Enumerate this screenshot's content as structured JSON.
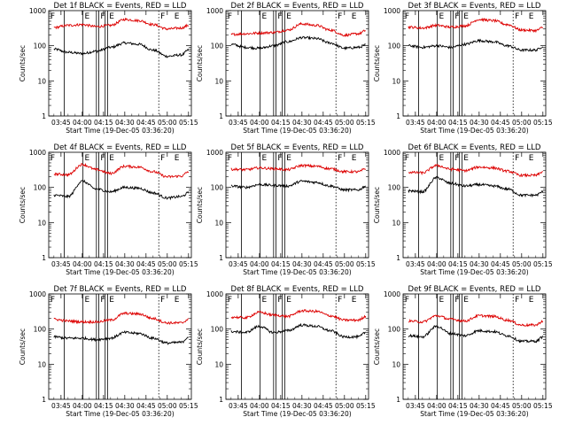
{
  "figure": {
    "background": "#ffffff",
    "event_color": "#000000",
    "lld_color": "#dd0000"
  },
  "chart_data": [
    {
      "type": "line",
      "title": "Det 1f BLACK = Events, RED = LLD",
      "xlabel": "Start Time (19-Dec-05 03:36:20)",
      "ylabel": "Counts/sec",
      "yscale": "log",
      "ylim": [
        1,
        1000
      ],
      "yticks": [
        "1",
        "10",
        "100",
        "1000"
      ],
      "xlim": [
        "03:36:20",
        "05:17:00"
      ],
      "xticks": [
        "03:45",
        "04:00",
        "04:15",
        "04:30",
        "04:45",
        "05:00",
        "05:15"
      ],
      "region_labels": [
        "F",
        "E",
        "F",
        "E",
        "F",
        "E"
      ],
      "series": [
        {
          "name": "Events",
          "x": [
            "03:40",
            "03:50",
            "04:00",
            "04:10",
            "04:20",
            "04:30",
            "04:40",
            "04:50",
            "05:00",
            "05:10",
            "05:15"
          ],
          "values": [
            80,
            65,
            60,
            70,
            90,
            120,
            110,
            75,
            50,
            55,
            75
          ]
        },
        {
          "name": "LLD",
          "x": [
            "03:40",
            "03:50",
            "04:00",
            "04:10",
            "04:20",
            "04:30",
            "04:40",
            "04:50",
            "05:00",
            "05:10",
            "05:15"
          ],
          "values": [
            330,
            380,
            400,
            350,
            380,
            560,
            520,
            400,
            300,
            320,
            380
          ]
        }
      ]
    },
    {
      "type": "line",
      "title": "Det 2f BLACK = Events, RED = LLD",
      "xlabel": "Start Time (19-Dec-05 03:36:20)",
      "ylabel": "Counts/sec",
      "yscale": "log",
      "ylim": [
        1,
        1000
      ],
      "yticks": [
        "1",
        "10",
        "100",
        "1000"
      ],
      "xlim": [
        "03:36:20",
        "05:17:00"
      ],
      "xticks": [
        "03:45",
        "04:00",
        "04:15",
        "04:30",
        "04:45",
        "05:00",
        "05:15"
      ],
      "region_labels": [
        "F",
        "E",
        "F",
        "E",
        "F",
        "E"
      ],
      "series": [
        {
          "name": "Events",
          "x": [
            "03:40",
            "03:50",
            "04:00",
            "04:10",
            "04:20",
            "04:30",
            "04:40",
            "04:50",
            "05:00",
            "05:10",
            "05:15"
          ],
          "values": [
            110,
            90,
            85,
            100,
            130,
            170,
            160,
            120,
            85,
            90,
            105
          ]
        },
        {
          "name": "LLD",
          "x": [
            "03:40",
            "03:50",
            "04:00",
            "04:10",
            "04:20",
            "04:30",
            "04:40",
            "04:50",
            "05:00",
            "05:10",
            "05:15"
          ],
          "values": [
            210,
            220,
            230,
            240,
            280,
            420,
            380,
            280,
            200,
            220,
            270
          ]
        }
      ]
    },
    {
      "type": "line",
      "title": "Det 3f BLACK = Events, RED = LLD",
      "xlabel": "Start Time (19-Dec-05 03:36:20)",
      "ylabel": "Counts/sec",
      "yscale": "log",
      "ylim": [
        1,
        1000
      ],
      "yticks": [
        "1",
        "10",
        "100",
        "1000"
      ],
      "xlim": [
        "03:36:20",
        "05:17:00"
      ],
      "xticks": [
        "03:45",
        "04:00",
        "04:15",
        "04:30",
        "04:45",
        "05:00",
        "05:15"
      ],
      "region_labels": [
        "F",
        "E",
        "F",
        "E",
        "F",
        "E"
      ],
      "series": [
        {
          "name": "Events",
          "x": [
            "03:40",
            "03:50",
            "04:00",
            "04:10",
            "04:20",
            "04:30",
            "04:40",
            "04:50",
            "05:00",
            "05:10",
            "05:15"
          ],
          "values": [
            100,
            90,
            100,
            90,
            110,
            140,
            130,
            100,
            75,
            75,
            95
          ]
        },
        {
          "name": "LLD",
          "x": [
            "03:40",
            "03:50",
            "04:00",
            "04:10",
            "04:20",
            "04:30",
            "04:40",
            "04:50",
            "05:00",
            "05:10",
            "05:15"
          ],
          "values": [
            340,
            320,
            380,
            340,
            370,
            560,
            520,
            400,
            280,
            270,
            330
          ]
        }
      ]
    },
    {
      "type": "line",
      "title": "Det 4f BLACK = Events, RED = LLD",
      "xlabel": "Start Time (19-Dec-05 03:36:20)",
      "ylabel": "Counts/sec",
      "yscale": "log",
      "ylim": [
        1,
        1000
      ],
      "yticks": [
        "1",
        "10",
        "100",
        "1000"
      ],
      "xlim": [
        "03:36:20",
        "05:17:00"
      ],
      "xticks": [
        "03:45",
        "04:00",
        "04:15",
        "04:30",
        "04:45",
        "05:00",
        "05:15"
      ],
      "region_labels": [
        "F",
        "E",
        "F",
        "E",
        "F",
        "E"
      ],
      "series": [
        {
          "name": "Events",
          "x": [
            "03:40",
            "03:50",
            "04:00",
            "04:10",
            "04:20",
            "04:30",
            "04:40",
            "04:50",
            "05:00",
            "05:10",
            "05:15"
          ],
          "values": [
            60,
            55,
            150,
            90,
            75,
            100,
            95,
            70,
            50,
            55,
            70
          ]
        },
        {
          "name": "LLD",
          "x": [
            "03:40",
            "03:50",
            "04:00",
            "04:10",
            "04:20",
            "04:30",
            "04:40",
            "04:50",
            "05:00",
            "05:10",
            "05:15"
          ],
          "values": [
            240,
            230,
            450,
            320,
            250,
            400,
            380,
            280,
            200,
            210,
            280
          ]
        }
      ]
    },
    {
      "type": "line",
      "title": "Det 5f BLACK = Events, RED = LLD",
      "xlabel": "Start Time (19-Dec-05 03:36:20)",
      "ylabel": "Counts/sec",
      "yscale": "log",
      "ylim": [
        1,
        1000
      ],
      "yticks": [
        "1",
        "10",
        "100",
        "1000"
      ],
      "xlim": [
        "03:36:20",
        "05:17:00"
      ],
      "xticks": [
        "03:45",
        "04:00",
        "04:15",
        "04:30",
        "04:45",
        "05:00",
        "05:15"
      ],
      "region_labels": [
        "F",
        "E",
        "F",
        "E",
        "F",
        "E"
      ],
      "series": [
        {
          "name": "Events",
          "x": [
            "03:40",
            "03:50",
            "04:00",
            "04:10",
            "04:20",
            "04:30",
            "04:40",
            "04:50",
            "05:00",
            "05:10",
            "05:15"
          ],
          "values": [
            110,
            100,
            120,
            115,
            110,
            150,
            140,
            110,
            85,
            85,
            110
          ]
        },
        {
          "name": "LLD",
          "x": [
            "03:40",
            "03:50",
            "04:00",
            "04:10",
            "04:20",
            "04:30",
            "04:40",
            "04:50",
            "05:00",
            "05:10",
            "05:15"
          ],
          "values": [
            330,
            320,
            360,
            340,
            320,
            420,
            400,
            340,
            280,
            280,
            340
          ]
        }
      ]
    },
    {
      "type": "line",
      "title": "Det 6f BLACK = Events, RED = LLD",
      "xlabel": "Start Time (19-Dec-05 03:36:20)",
      "ylabel": "Counts/sec",
      "yscale": "log",
      "ylim": [
        1,
        1000
      ],
      "yticks": [
        "1",
        "10",
        "100",
        "1000"
      ],
      "xlim": [
        "03:36:20",
        "05:17:00"
      ],
      "xticks": [
        "03:45",
        "04:00",
        "04:15",
        "04:30",
        "04:45",
        "05:00",
        "05:15"
      ],
      "region_labels": [
        "F",
        "E",
        "F",
        "E",
        "F",
        "E"
      ],
      "series": [
        {
          "name": "Events",
          "x": [
            "03:40",
            "03:50",
            "04:00",
            "04:10",
            "04:20",
            "04:30",
            "04:40",
            "04:50",
            "05:00",
            "05:10",
            "05:15"
          ],
          "values": [
            80,
            75,
            190,
            130,
            110,
            120,
            110,
            90,
            60,
            60,
            75
          ]
        },
        {
          "name": "LLD",
          "x": [
            "03:40",
            "03:50",
            "04:00",
            "04:10",
            "04:20",
            "04:30",
            "04:40",
            "04:50",
            "05:00",
            "05:10",
            "05:15"
          ],
          "values": [
            270,
            260,
            420,
            330,
            300,
            380,
            360,
            290,
            220,
            220,
            280
          ]
        }
      ]
    },
    {
      "type": "line",
      "title": "Det 7f BLACK = Events, RED = LLD",
      "xlabel": "Start Time (19-Dec-05 03:36:20)",
      "ylabel": "Counts/sec",
      "yscale": "log",
      "ylim": [
        1,
        1000
      ],
      "yticks": [
        "1",
        "10",
        "100",
        "1000"
      ],
      "xlim": [
        "03:36:20",
        "05:17:00"
      ],
      "xticks": [
        "03:45",
        "04:00",
        "04:15",
        "04:30",
        "04:45",
        "05:00",
        "05:15"
      ],
      "region_labels": [
        "F",
        "E",
        "F",
        "E",
        "F",
        "E"
      ],
      "series": [
        {
          "name": "Events",
          "x": [
            "03:40",
            "03:50",
            "04:00",
            "04:10",
            "04:20",
            "04:30",
            "04:40",
            "04:50",
            "05:00",
            "05:10",
            "05:15"
          ],
          "values": [
            60,
            55,
            55,
            50,
            55,
            80,
            75,
            55,
            40,
            42,
            60
          ]
        },
        {
          "name": "LLD",
          "x": [
            "03:40",
            "03:50",
            "04:00",
            "04:10",
            "04:20",
            "04:30",
            "04:40",
            "04:50",
            "05:00",
            "05:10",
            "05:15"
          ],
          "values": [
            190,
            170,
            160,
            160,
            180,
            280,
            270,
            200,
            150,
            150,
            190
          ]
        }
      ]
    },
    {
      "type": "line",
      "title": "Det 8f BLACK = Events, RED = LLD",
      "xlabel": "Start Time (19-Dec-05 03:36:20)",
      "ylabel": "Counts/sec",
      "yscale": "log",
      "ylim": [
        1,
        1000
      ],
      "yticks": [
        "1",
        "10",
        "100",
        "1000"
      ],
      "xlim": [
        "03:36:20",
        "05:17:00"
      ],
      "xticks": [
        "03:45",
        "04:00",
        "04:15",
        "04:30",
        "04:45",
        "05:00",
        "05:15"
      ],
      "region_labels": [
        "F",
        "E",
        "F",
        "E",
        "F",
        "E"
      ],
      "series": [
        {
          "name": "Events",
          "x": [
            "03:40",
            "03:50",
            "04:00",
            "04:10",
            "04:20",
            "04:30",
            "04:40",
            "04:50",
            "05:00",
            "05:10",
            "05:15"
          ],
          "values": [
            85,
            80,
            120,
            80,
            90,
            130,
            120,
            90,
            60,
            60,
            80
          ]
        },
        {
          "name": "LLD",
          "x": [
            "03:40",
            "03:50",
            "04:00",
            "04:10",
            "04:20",
            "04:30",
            "04:40",
            "04:50",
            "05:00",
            "05:10",
            "05:15"
          ],
          "values": [
            220,
            210,
            300,
            250,
            230,
            330,
            320,
            240,
            180,
            180,
            230
          ]
        }
      ]
    },
    {
      "type": "line",
      "title": "Det 9f BLACK = Events, RED = LLD",
      "xlabel": "Start Time (19-Dec-05 03:36:20)",
      "ylabel": "Counts/sec",
      "yscale": "log",
      "ylim": [
        1,
        1000
      ],
      "yticks": [
        "1",
        "10",
        "100",
        "1000"
      ],
      "xlim": [
        "03:36:20",
        "05:17:00"
      ],
      "xticks": [
        "03:45",
        "04:00",
        "04:15",
        "04:30",
        "04:45",
        "05:00",
        "05:15"
      ],
      "region_labels": [
        "F",
        "E",
        "F",
        "E",
        "F",
        "E"
      ],
      "series": [
        {
          "name": "Events",
          "x": [
            "03:40",
            "03:50",
            "04:00",
            "04:10",
            "04:20",
            "04:30",
            "04:40",
            "04:50",
            "05:00",
            "05:10",
            "05:15"
          ],
          "values": [
            65,
            60,
            120,
            75,
            65,
            90,
            85,
            65,
            45,
            45,
            60
          ]
        },
        {
          "name": "LLD",
          "x": [
            "03:40",
            "03:50",
            "04:00",
            "04:10",
            "04:20",
            "04:30",
            "04:40",
            "04:50",
            "05:00",
            "05:10",
            "05:15"
          ],
          "values": [
            170,
            160,
            240,
            190,
            170,
            240,
            230,
            180,
            130,
            130,
            170
          ]
        }
      ]
    }
  ]
}
